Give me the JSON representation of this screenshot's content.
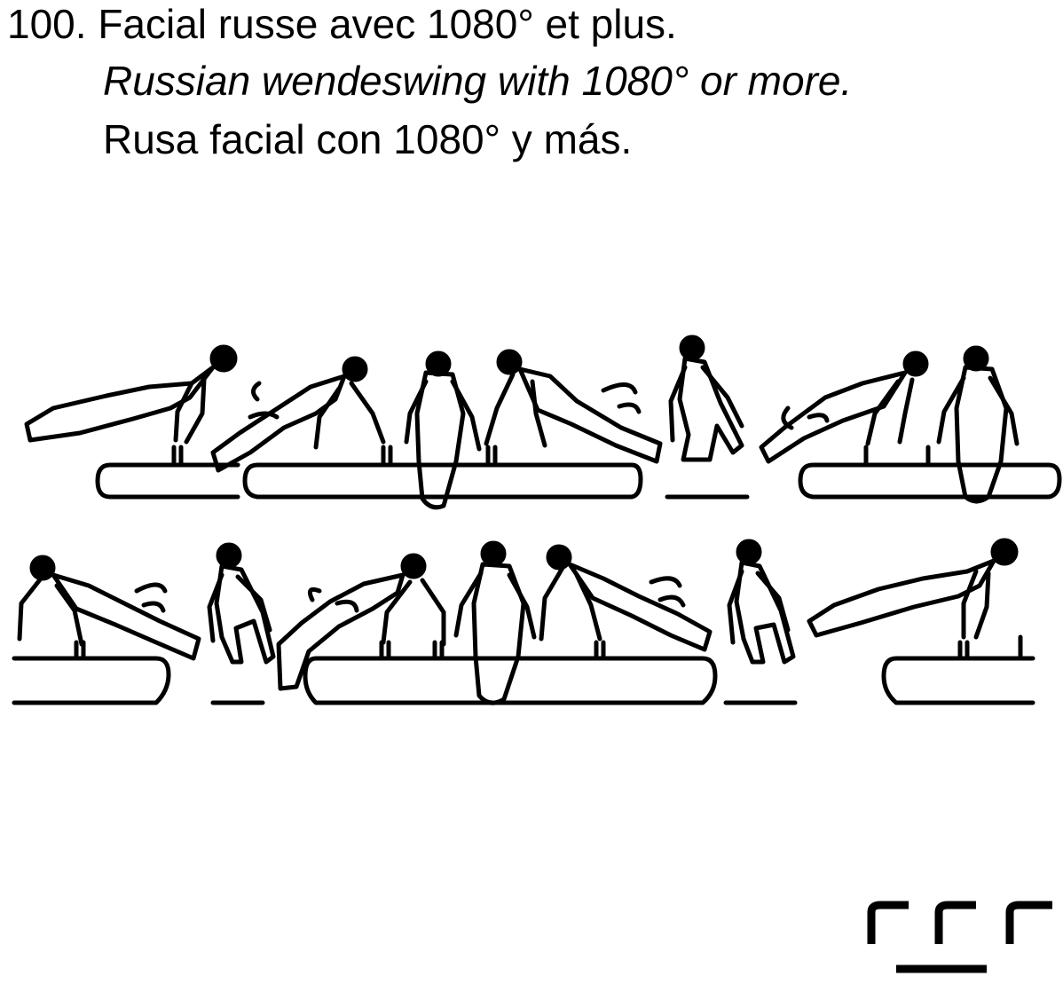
{
  "element": {
    "number": "100.",
    "french": "Facial russe avec 1080° et plus.",
    "english": "Russian wendeswing with 1080° or more.",
    "spanish": "Rusa facial con 1080° y más."
  },
  "figure": {
    "rows": [
      {
        "positions": [
          "front-support",
          "travel-flank",
          "rear-support",
          "travel-flank",
          "side-support",
          "travel-flank",
          "rear-support"
        ]
      },
      {
        "positions": [
          "front-support",
          "side-support",
          "travel-flank",
          "rear-support",
          "travel-flank",
          "side-support",
          "front-support"
        ]
      }
    ]
  },
  "symbol": {
    "count": 3
  }
}
